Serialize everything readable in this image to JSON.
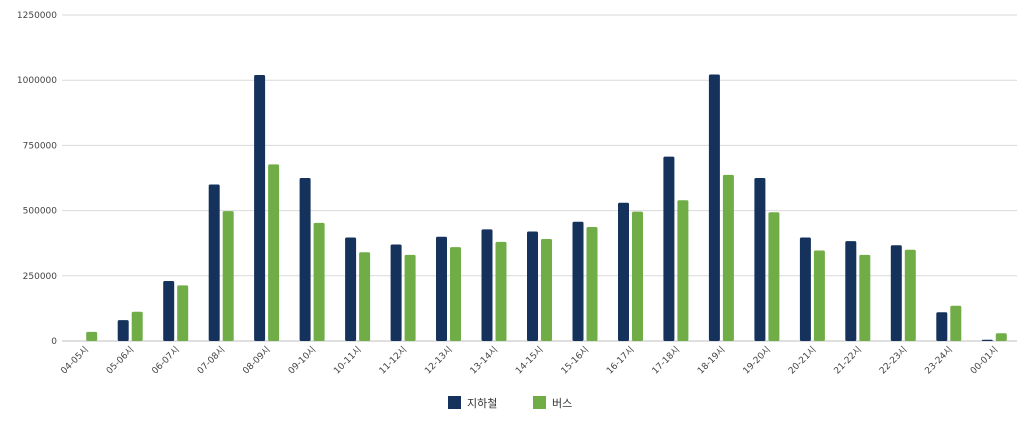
{
  "chart_data": {
    "type": "bar",
    "categories": [
      "04-05시",
      "05-06시",
      "06-07시",
      "07-08시",
      "08-09시",
      "09-10시",
      "10-11시",
      "11-12시",
      "12-13시",
      "13-14시",
      "14-15시",
      "15-16시",
      "16-17시",
      "17-18시",
      "18-19시",
      "19-20시",
      "20-21시",
      "21-22시",
      "22-23시",
      "23-24시",
      "00-01시"
    ],
    "series": [
      {
        "name": "지하철",
        "color": "#14325c",
        "values": [
          0,
          80000,
          230000,
          600000,
          1020000,
          625000,
          397000,
          370000,
          400000,
          428000,
          420000,
          457000,
          530000,
          707000,
          1022000,
          625000,
          397000,
          383000,
          367000,
          110000,
          5000
        ]
      },
      {
        "name": "버스",
        "color": "#70ad47",
        "values": [
          35000,
          112000,
          213000,
          498000,
          677000,
          453000,
          340000,
          330000,
          360000,
          380000,
          391000,
          437000,
          496000,
          540000,
          637000,
          494000,
          347000,
          330000,
          350000,
          135000,
          30000
        ]
      }
    ],
    "ylim": [
      0,
      1250000
    ],
    "yticks": [
      "0",
      "250000",
      "500000",
      "750000",
      "1000000",
      "1250000"
    ],
    "ytick_values": [
      0,
      250000,
      500000,
      750000,
      1000000,
      1250000
    ],
    "legend_position": "bottom-center",
    "grid": true,
    "title": "",
    "xlabel": "",
    "ylabel": ""
  }
}
